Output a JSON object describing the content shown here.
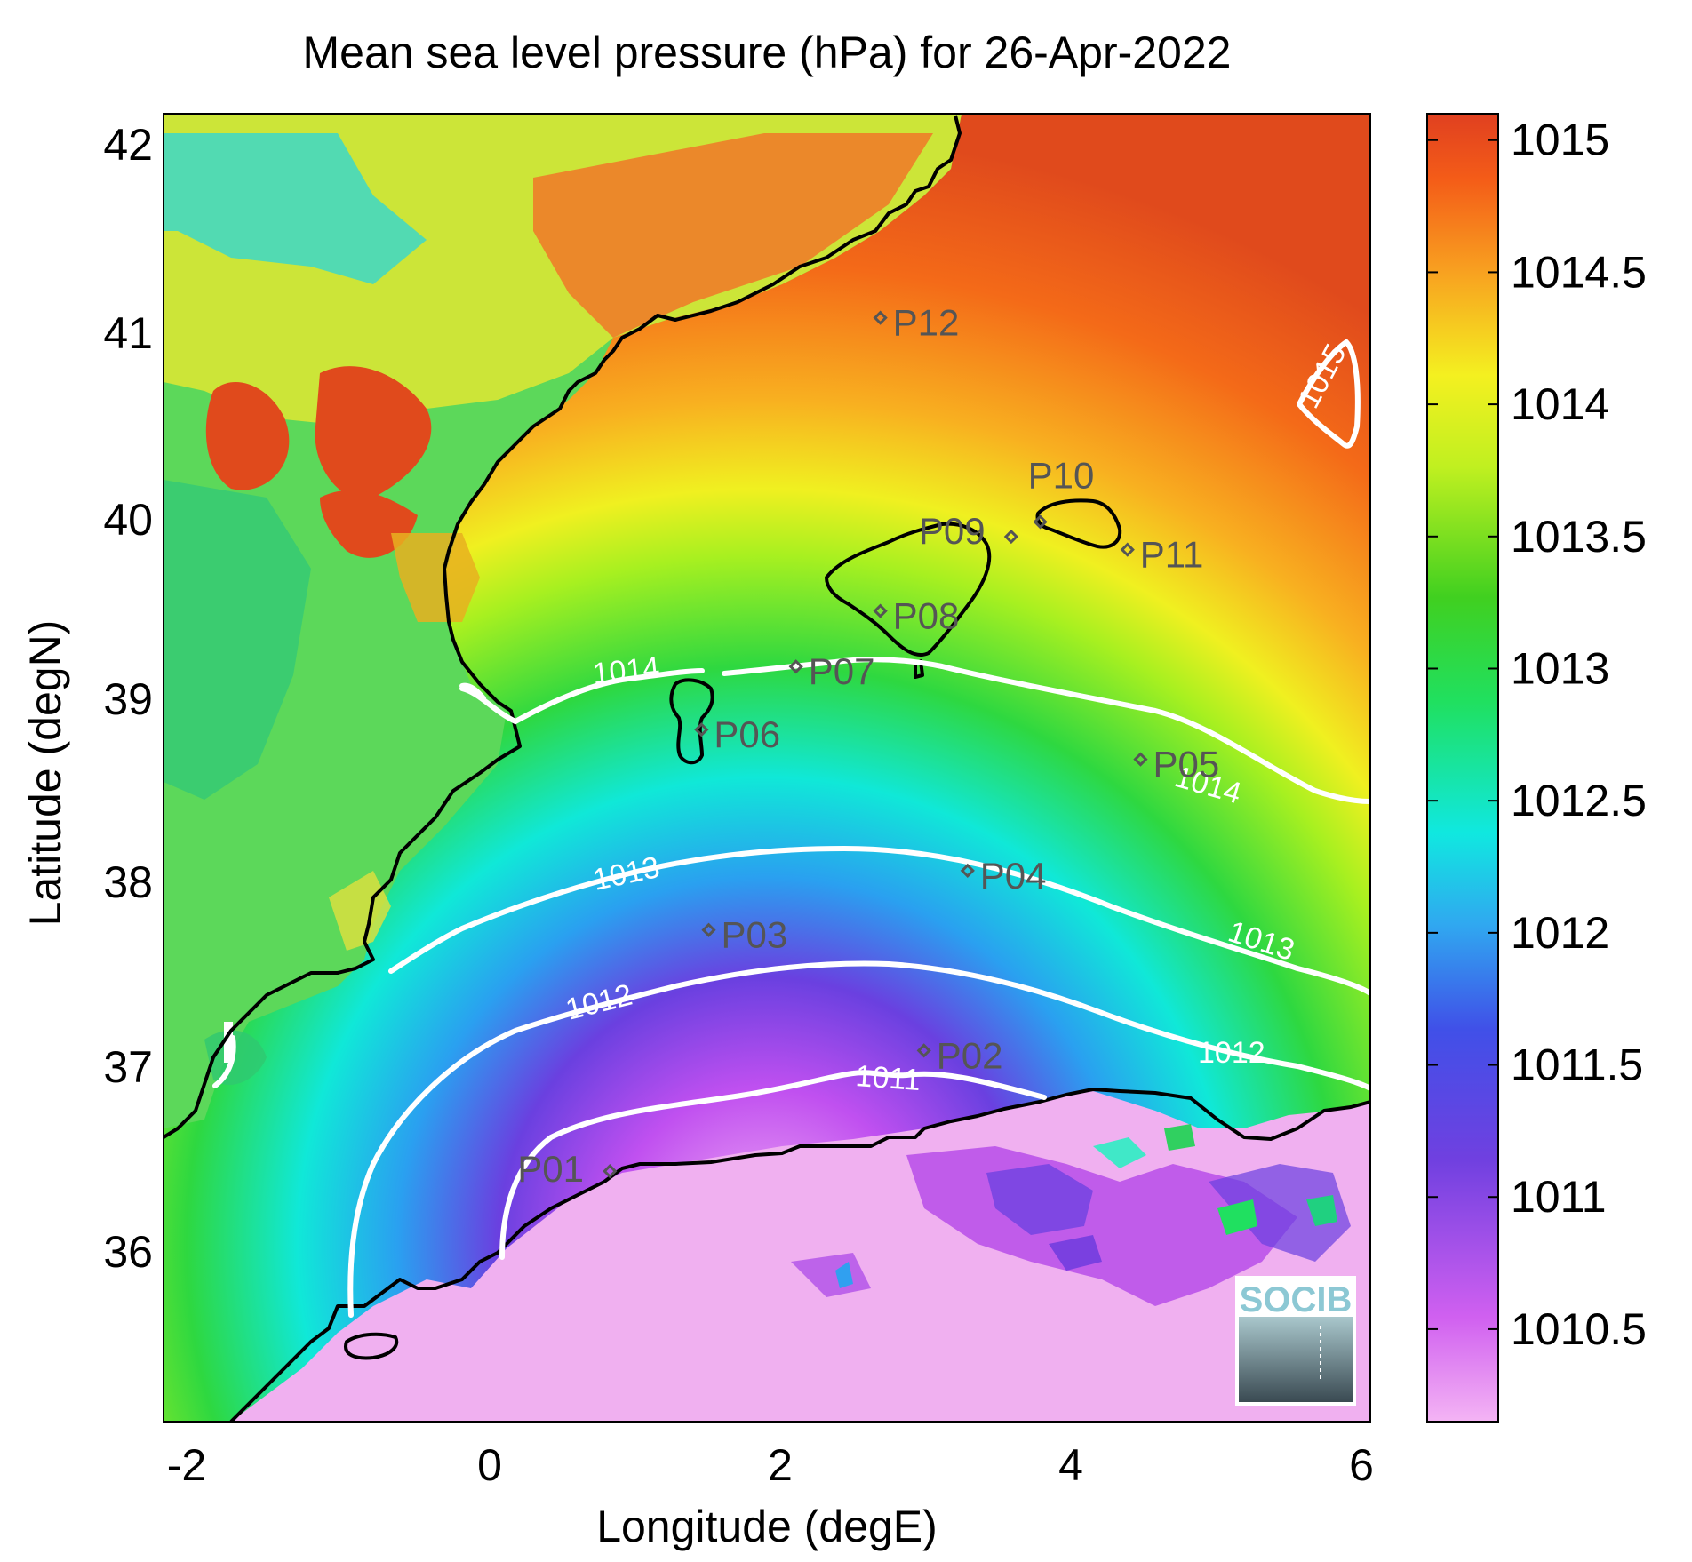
{
  "title": "Mean sea level pressure (hPa) for 26-Apr-2022",
  "xlabel": "Longitude (degE)",
  "ylabel": "Latitude (degN)",
  "x_ticks": [
    "-2",
    "0",
    "2",
    "4",
    "6"
  ],
  "y_ticks": [
    "42",
    "41",
    "40",
    "39",
    "38",
    "37",
    "36"
  ],
  "colorbar_ticks": [
    "1015",
    "1014.5",
    "1014",
    "1013.5",
    "1013",
    "1012.5",
    "1012",
    "1011.5",
    "1011",
    "1010.5"
  ],
  "contour_labels": {
    "c1015": "1015",
    "c1014a": "1014",
    "c1014b": "1014",
    "c1013a": "1013",
    "c1013b": "1013",
    "c1012a": "1012",
    "c1012b": "1012",
    "c1011": "1011"
  },
  "logo_text": "SOCIB",
  "colors": {
    "land_outline": "#000000",
    "contour": "#ffffff",
    "station_marker": "#555555",
    "colormap_high": "#e04020",
    "colormap_low": "#f0a8f0"
  },
  "chart_data": {
    "type": "heatmap",
    "variable": "Mean sea level pressure",
    "units": "hPa",
    "date": "26-Apr-2022",
    "xlim": [
      -2.25,
      6.05
    ],
    "ylim": [
      35.15,
      42.2
    ],
    "color_range": [
      1010.15,
      1015.1
    ],
    "contour_levels": [
      1011,
      1012,
      1013,
      1014,
      1015
    ],
    "stations": [
      {
        "name": "P01",
        "lon": 0.82,
        "lat": 36.5
      },
      {
        "name": "P02",
        "lon": 2.98,
        "lat": 37.15
      },
      {
        "name": "P03",
        "lon": 1.5,
        "lat": 37.8
      },
      {
        "name": "P04",
        "lon": 3.28,
        "lat": 38.12
      },
      {
        "name": "P05",
        "lon": 4.47,
        "lat": 38.72
      },
      {
        "name": "P06",
        "lon": 1.45,
        "lat": 38.88
      },
      {
        "name": "P07",
        "lon": 2.1,
        "lat": 39.22
      },
      {
        "name": "P08",
        "lon": 2.68,
        "lat": 39.52
      },
      {
        "name": "P09",
        "lon": 3.58,
        "lat": 39.92
      },
      {
        "name": "P10",
        "lon": 3.78,
        "lat": 40.0
      },
      {
        "name": "P11",
        "lon": 4.38,
        "lat": 39.85
      },
      {
        "name": "P12",
        "lon": 2.68,
        "lat": 41.1
      }
    ]
  }
}
